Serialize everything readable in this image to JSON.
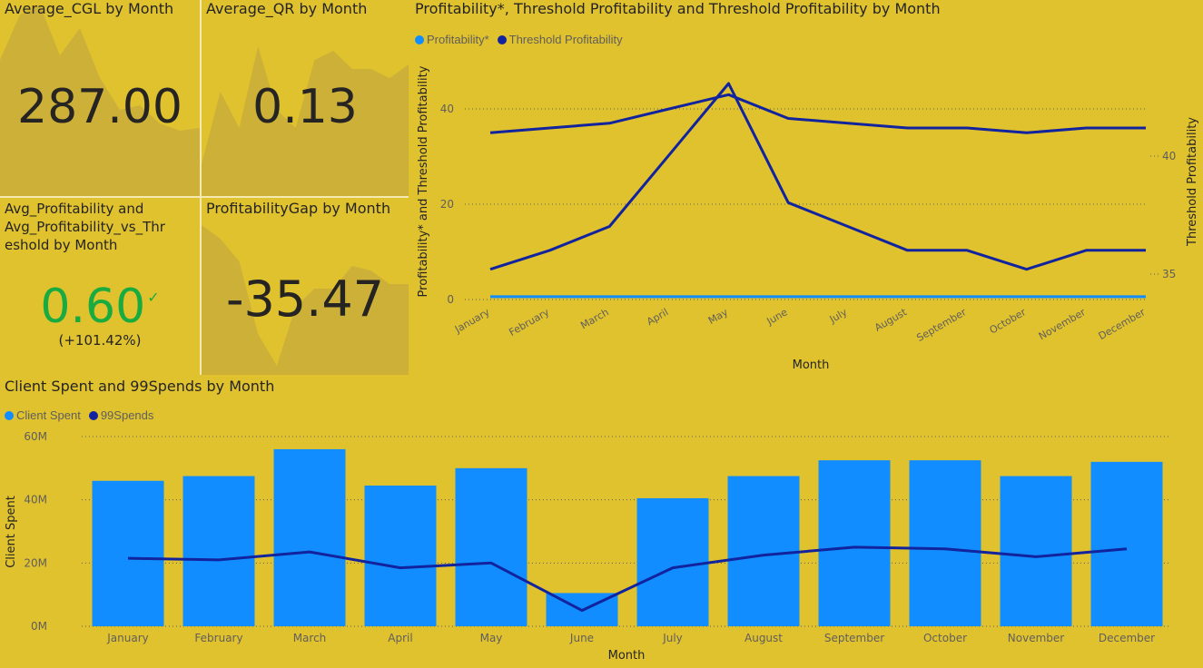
{
  "colors": {
    "background": "#E0C22E",
    "sparkline": "#C9AD3A",
    "line_dark": "#12239E",
    "bar_blue": "#118DFF",
    "positive": "#1AAB40",
    "text": "#252423",
    "axis_text": "#605E5C"
  },
  "cards": {
    "cgl": {
      "title": "Average_CGL by Month",
      "value": "287.00",
      "spark": [
        150,
        200,
        210,
        155,
        185,
        130,
        95,
        100,
        80,
        72,
        75
      ]
    },
    "qr": {
      "title": "Average_QR by Month",
      "value": "0.13",
      "spark": [
        35,
        115,
        75,
        165,
        95,
        75,
        150,
        160,
        140,
        140,
        130,
        145
      ]
    },
    "prof": {
      "title": "Avg_Profitability and\nAvg_Profitability_vs_Thr\neshold by Month",
      "value": "0.60",
      "delta": "(+101.42%)",
      "check": "✓"
    },
    "gap": {
      "title": "ProfitabilityGap by Month",
      "value": "-35.47",
      "spark": [
        165,
        150,
        125,
        45,
        10,
        75,
        95,
        95,
        120,
        115,
        100,
        100
      ]
    }
  },
  "chart_data": [
    {
      "type": "line",
      "title": "Profitability*, Threshold Profitability and Threshold Profitability by Month",
      "xlabel": "Month",
      "ylabel": "Profitability* and Threshold Profitability",
      "y2label": "Threshold Profitability",
      "categories": [
        "January",
        "February",
        "March",
        "April",
        "May",
        "June",
        "July",
        "August",
        "September",
        "October",
        "November",
        "December"
      ],
      "ylim": [
        0,
        40
      ],
      "yticks": [
        0,
        20,
        40
      ],
      "y2lim": [
        35,
        40
      ],
      "y2ticks": [
        35,
        40
      ],
      "legend": [
        "Profitability*",
        "Threshold Profitability"
      ],
      "series": [
        {
          "name": "Profitability*",
          "axis": "left",
          "color": "#118DFF",
          "values": [
            0.6,
            0.6,
            0.6,
            0.6,
            0.6,
            0.6,
            0.6,
            0.6,
            0.6,
            0.6,
            0.6,
            0.6
          ]
        },
        {
          "name": "Threshold Profitability",
          "axis": "left",
          "color": "#12239E",
          "values": [
            35,
            36,
            37,
            40,
            43,
            38,
            37,
            36,
            36,
            35,
            36,
            36
          ]
        },
        {
          "name": "Threshold Profitability",
          "axis": "right",
          "color": "#12239E",
          "values": [
            35.2,
            36.0,
            37.0,
            40.0,
            43.0,
            38.0,
            37.0,
            36.0,
            36.0,
            35.2,
            36.0,
            36.0
          ]
        }
      ]
    },
    {
      "type": "bar",
      "title": "Client Spent and 99Spends by Month",
      "xlabel": "Month",
      "ylabel": "Client Spent",
      "categories": [
        "January",
        "February",
        "March",
        "April",
        "May",
        "June",
        "July",
        "August",
        "September",
        "October",
        "November",
        "December"
      ],
      "ylim": [
        0,
        60
      ],
      "yticks": [
        "0M",
        "20M",
        "40M",
        "60M"
      ],
      "legend": [
        "Client Spent",
        "99Spends"
      ],
      "series": [
        {
          "name": "Client Spent",
          "type": "bar",
          "color": "#118DFF",
          "values": [
            46,
            47.5,
            56,
            44.5,
            50,
            10.5,
            40.5,
            47.5,
            52.5,
            52.5,
            47.5,
            52
          ]
        },
        {
          "name": "99Spends",
          "type": "line",
          "color": "#12239E",
          "values": [
            21.5,
            21,
            23.5,
            18.5,
            20,
            5,
            18.5,
            22.5,
            25,
            24.5,
            22,
            24.5
          ]
        }
      ]
    }
  ]
}
